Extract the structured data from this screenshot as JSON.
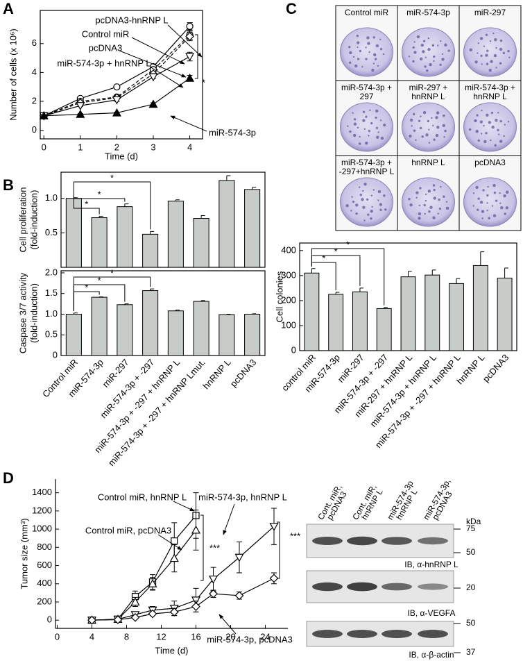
{
  "panel_labels": [
    "A",
    "B",
    "C",
    "D"
  ],
  "chart_data": [
    {
      "type": "line",
      "xlabel": "Time (d)",
      "ylabel": "Number of cells (x 10⁶)",
      "x": [
        0,
        1,
        2,
        3,
        4
      ],
      "xlim": [
        -0.1,
        4.35
      ],
      "xticks": [
        0,
        1,
        2,
        3,
        4
      ],
      "ylim": [
        -0.6,
        8.3
      ],
      "yticks": [
        0,
        2,
        4,
        6
      ],
      "series": [
        {
          "name": "pcDNA3-hnRNP L",
          "color": "#000000",
          "marker": "circle",
          "marker_fill": "#ffffff",
          "dashed": false,
          "values": [
            1,
            2.2,
            3,
            4.4,
            7.2
          ],
          "errors": [
            0.05,
            0.05,
            0.05,
            0.1,
            0.25
          ]
        },
        {
          "name": "Control miR",
          "color": "#000000",
          "marker": "circle",
          "marker_fill": "#ffffff",
          "dashed": true,
          "values": [
            1,
            2,
            2.3,
            4.2,
            6.6
          ],
          "errors": [
            0.05,
            0.05,
            0.1,
            0.1,
            0.3
          ]
        },
        {
          "name": "pcDNA3",
          "color": "#000000",
          "marker": "diamond",
          "marker_fill": "#ffffff",
          "dashed": true,
          "values": [
            1,
            1.9,
            2.25,
            3.9,
            6.5
          ],
          "errors": [
            0.05,
            0.05,
            0.1,
            0.1,
            0.3
          ]
        },
        {
          "name": "miR-574-3p + hnRNP L",
          "color": "#000000",
          "marker": "triangle-down",
          "marker_fill": "#ffffff",
          "dashed": false,
          "values": [
            1,
            1.7,
            2.1,
            3.7,
            5.1
          ],
          "errors": [
            0.05,
            0.05,
            0.1,
            0.1,
            0.3
          ]
        },
        {
          "name": "miR-574-3p",
          "color": "#000000",
          "marker": "triangle-up",
          "marker_fill": "#000000",
          "dashed": false,
          "values": [
            1,
            1.1,
            1.2,
            1.8,
            3.6
          ],
          "errors": [
            0.05,
            0.05,
            0.05,
            0.1,
            0.2
          ]
        }
      ],
      "annotations": [
        "*"
      ]
    },
    {
      "type": "bar",
      "ylabel": [
        "Cell proliferation",
        "(fold-induction)"
      ],
      "categories": [
        null,
        null,
        null,
        null,
        null,
        null,
        null,
        null
      ],
      "values": [
        1.0,
        0.72,
        0.88,
        0.48,
        0.96,
        0.71,
        1.26,
        1.13
      ],
      "errors": [
        0.01,
        0.02,
        0.04,
        0.04,
        0.02,
        0.04,
        0.07,
        0.03
      ],
      "color": "#c8ccc8",
      "ylim": [
        0,
        1.38
      ],
      "yticks": [
        0.5,
        {
          "value": 1,
          "label": "1.0"
        }
      ],
      "annotations": [
        "*",
        "*",
        "*"
      ]
    },
    {
      "type": "bar",
      "ylabel": [
        "Caspase 3/7 activity",
        "(fold-induction)"
      ],
      "categories": [
        "Control miR",
        "miR-574-3p",
        "miR-297",
        "miR-574-3p + -297",
        "miR-574-3p + -297 + hnRNP L",
        "miR-574-3p + -297 + hnRNP Lmut.",
        "hnRNP L",
        "pcDNA3"
      ],
      "values": [
        1.0,
        1.41,
        1.23,
        1.57,
        1.08,
        1.31,
        0.99,
        1.0
      ],
      "errors": [
        0.03,
        0.01,
        0.02,
        0.04,
        0.02,
        0.02,
        0.01,
        0.01
      ],
      "color": "#c8ccc8",
      "ylim": [
        0,
        2.05
      ],
      "yticks": [
        0,
        0.5,
        {
          "value": 1,
          "label": "1.0"
        },
        1.5,
        {
          "value": 2,
          "label": "2.0"
        }
      ],
      "annotations": [
        "*",
        "*",
        "*"
      ]
    },
    {
      "type": "bar",
      "ylabel": "Cell colonies",
      "categories": [
        "control miR",
        "miR-574-3p",
        "miR-297",
        "miR-574-3p + -297",
        "miR-297 + hnRNP L",
        "miR-574-3p + hnRNP L",
        "miR-574-3p + -297 + hnRNP L",
        "hnRNP L",
        "pcDNA3"
      ],
      "values": [
        310,
        225,
        235,
        168,
        295,
        302,
        268,
        340,
        290
      ],
      "errors": [
        18,
        8,
        15,
        5,
        22,
        20,
        20,
        55,
        40
      ],
      "color": "#c8ccc8",
      "ylim": [
        0,
        430
      ],
      "yticks": [
        0,
        100,
        200,
        300,
        400
      ],
      "annotations": [
        "*",
        "*",
        "*"
      ]
    },
    {
      "type": "line",
      "xlabel": "Time (d)",
      "ylabel": "Tumor size (mm³)",
      "xlim": [
        -0.2,
        26.6
      ],
      "xticks": [
        0,
        4,
        8,
        12,
        16,
        20,
        24
      ],
      "ylim": [
        -90,
        1550
      ],
      "yticks": [
        0,
        200,
        400,
        600,
        800,
        1000,
        1200,
        1400
      ],
      "series": [
        {
          "name": "Control miR, hnRNP L",
          "color": "#000000",
          "marker": "square",
          "marker_fill": "#ffffff",
          "dashed": false,
          "x": [
            4,
            7,
            9,
            11,
            13.5,
            16
          ],
          "values": [
            0,
            10,
            260,
            420,
            870,
            1150
          ],
          "errors": [
            0,
            10,
            60,
            80,
            200,
            250
          ]
        },
        {
          "name": "Control miR, pcDNA3",
          "color": "#000000",
          "marker": "triangle-up",
          "marker_fill": "#ffffff",
          "dashed": false,
          "x": [
            4,
            7,
            9,
            11,
            13.5,
            16
          ],
          "values": [
            0,
            10,
            200,
            400,
            680,
            990
          ],
          "errors": [
            0,
            10,
            50,
            70,
            150,
            220
          ]
        },
        {
          "name": "miR-574-3p, hnRNP L",
          "color": "#000000",
          "marker": "triangle-down",
          "marker_fill": "#ffffff",
          "dashed": false,
          "x": [
            4,
            7,
            9,
            11,
            13.5,
            16,
            18,
            21,
            25
          ],
          "values": [
            0,
            10,
            60,
            110,
            130,
            220,
            450,
            690,
            1030
          ],
          "errors": [
            0,
            5,
            20,
            40,
            80,
            130,
            130,
            170,
            200
          ]
        },
        {
          "name": "miR-574-3p, pcDNA3",
          "color": "#000000",
          "marker": "diamond",
          "marker_fill": "#ffffff",
          "dashed": false,
          "x": [
            4,
            7,
            9,
            11,
            13.5,
            16,
            18,
            21,
            25
          ],
          "values": [
            0,
            5,
            30,
            70,
            90,
            150,
            290,
            270,
            460
          ],
          "errors": [
            0,
            5,
            10,
            20,
            40,
            60,
            40,
            40,
            60
          ]
        }
      ],
      "annotations": [
        "***",
        "***"
      ]
    }
  ],
  "colony_images": {
    "labels": [
      [
        "Control miR"
      ],
      [
        "miR-574-3p"
      ],
      [
        "miR-297"
      ],
      [
        "miR-574-3p +",
        "297"
      ],
      [
        "miR-297 +",
        "hnRNP L"
      ],
      [
        "miR-574-3p +",
        "hnRNP L"
      ],
      [
        "miR-574-3p +",
        "-297+hnRNP L"
      ],
      [
        "hnRNP L"
      ],
      [
        "pcDNA3"
      ]
    ]
  },
  "western_blot": {
    "unit": "kDa",
    "lanes": [
      [
        "Cont. miR,",
        "pcDNA3"
      ],
      [
        "Cont. miR,",
        "hnRNP L"
      ],
      [
        "miR-574-3p",
        "hnRNP L"
      ],
      [
        "miR-574-3p,",
        "pcDNA3"
      ]
    ],
    "blots": [
      {
        "label": "IB, α-hnRNP L",
        "markers": [
          75,
          50
        ]
      },
      {
        "label": "IB, α-VEGFA",
        "markers": [
          20
        ]
      },
      {
        "label": "IB, α-β-actin",
        "markers": [
          50,
          37
        ]
      }
    ]
  }
}
